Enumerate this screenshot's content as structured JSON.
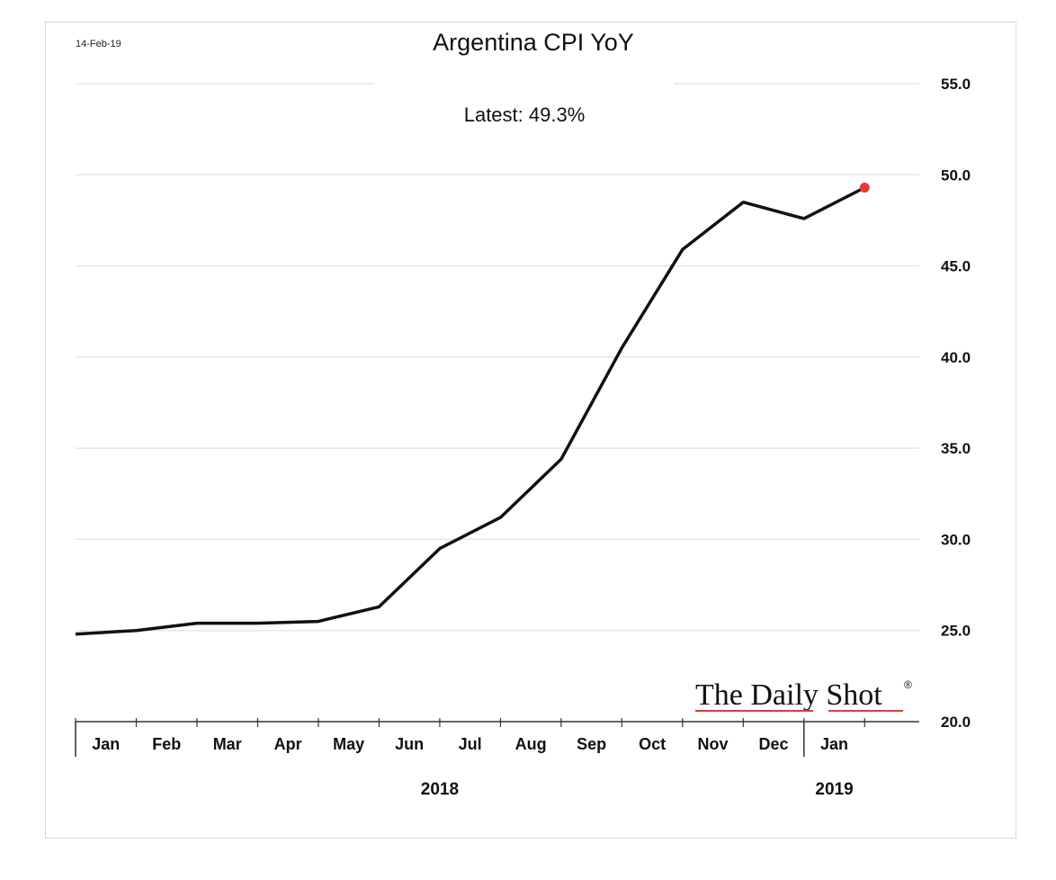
{
  "chart_data": {
    "type": "line",
    "date_stamp": "14-Feb-19",
    "title": "Argentina CPI YoY",
    "annotation": "Latest:  49.3%",
    "logo_text": "The Daily Shot",
    "logo_mark": "®",
    "categories": [
      "Jan",
      "Feb",
      "Mar",
      "Apr",
      "May",
      "Jun",
      "Jul",
      "Aug",
      "Sep",
      "Oct",
      "Nov",
      "Dec",
      "Jan"
    ],
    "year_labels": [
      {
        "label": "2018",
        "span": [
          0,
          11
        ]
      },
      {
        "label": "2019",
        "span": [
          12,
          12
        ]
      }
    ],
    "series": [
      {
        "points": [
          {
            "x": 0.0,
            "y": 24.8
          },
          {
            "x": 0.5,
            "y": 24.9
          },
          {
            "x": 1.0,
            "y": 25.0
          },
          {
            "x": 2.0,
            "y": 25.4
          },
          {
            "x": 3.0,
            "y": 25.4
          },
          {
            "x": 4.0,
            "y": 25.5
          },
          {
            "x": 5.0,
            "y": 26.3
          },
          {
            "x": 6.0,
            "y": 29.5
          },
          {
            "x": 7.0,
            "y": 31.2
          },
          {
            "x": 8.0,
            "y": 34.4
          },
          {
            "x": 9.0,
            "y": 40.5
          },
          {
            "x": 10.0,
            "y": 45.9
          },
          {
            "x": 11.0,
            "y": 48.5
          },
          {
            "x": 12.0,
            "y": 47.6
          },
          {
            "x": 13.0,
            "y": 49.3
          }
        ],
        "color": "#111111"
      }
    ],
    "latest_point": {
      "x": 13.0,
      "y": 49.3,
      "color": "#e53935"
    },
    "yticks": [
      "55.0",
      "50.0",
      "45.0",
      "40.0",
      "35.0",
      "30.0",
      "25.0",
      "20.0"
    ],
    "ylim": [
      20,
      55
    ],
    "xlim": [
      0,
      13.9
    ],
    "grid": true,
    "grid_color": "#e6e6e6",
    "logo_underline_color": "#e53935"
  }
}
